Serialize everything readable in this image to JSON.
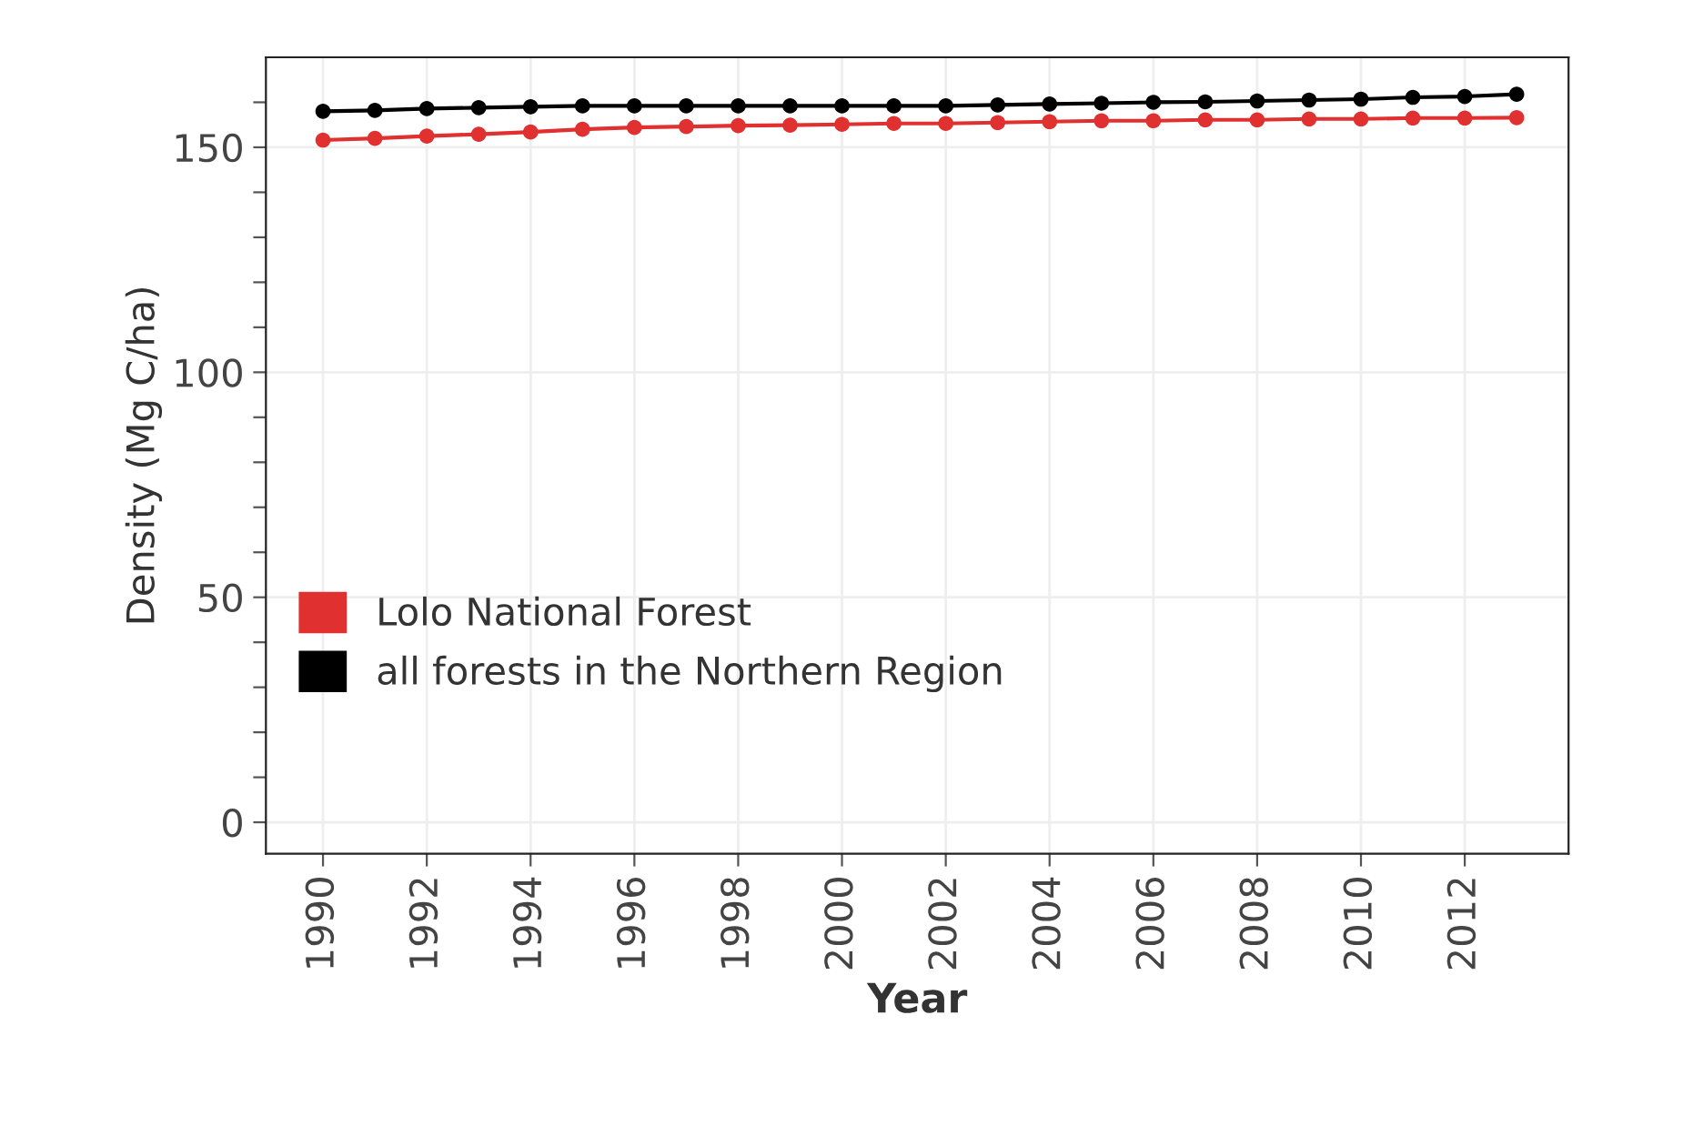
{
  "chart_data": {
    "type": "line",
    "xlabel": "Year",
    "ylabel": "Density (Mg C/ha)",
    "x": [
      1990,
      1991,
      1992,
      1993,
      1994,
      1995,
      1996,
      1997,
      1998,
      1999,
      2000,
      2001,
      2002,
      2003,
      2004,
      2005,
      2006,
      2007,
      2008,
      2009,
      2010,
      2011,
      2012,
      2013
    ],
    "series": [
      {
        "name": "Lolo National Forest",
        "color": "#e03030",
        "values": [
          151.6,
          152.0,
          152.5,
          152.9,
          153.4,
          154.0,
          154.4,
          154.6,
          154.8,
          154.9,
          155.1,
          155.3,
          155.3,
          155.5,
          155.7,
          155.9,
          155.9,
          156.1,
          156.1,
          156.3,
          156.3,
          156.5,
          156.5,
          156.6
        ]
      },
      {
        "name": "all forests in the Northern Region",
        "color": "#000000",
        "values": [
          158.0,
          158.2,
          158.6,
          158.8,
          159.0,
          159.2,
          159.2,
          159.2,
          159.2,
          159.2,
          159.2,
          159.2,
          159.2,
          159.4,
          159.6,
          159.8,
          160.0,
          160.1,
          160.3,
          160.5,
          160.7,
          161.1,
          161.3,
          161.8
        ]
      }
    ],
    "xlim": [
      1988.9,
      2014.0
    ],
    "xticks": [
      1990,
      1992,
      1994,
      1996,
      1998,
      2000,
      2002,
      2004,
      2006,
      2008,
      2010,
      2012
    ],
    "ylim": [
      -7,
      170
    ],
    "yticks": [
      0,
      {
        "value": 10,
        "label": null
      },
      {
        "value": 20,
        "label": null
      },
      {
        "value": 30,
        "label": null
      },
      {
        "value": 40,
        "label": null
      },
      50,
      {
        "value": 60,
        "label": null
      },
      {
        "value": 70,
        "label": null
      },
      {
        "value": 80,
        "label": null
      },
      {
        "value": 90,
        "label": null
      },
      100,
      {
        "value": 110,
        "label": null
      },
      {
        "value": 120,
        "label": null
      },
      {
        "value": 130,
        "label": null
      },
      {
        "value": 140,
        "label": null
      },
      150,
      {
        "value": 160,
        "label": null
      }
    ],
    "grid": true,
    "legend": "bottom left",
    "marker": "circle",
    "line_style": "solid"
  }
}
